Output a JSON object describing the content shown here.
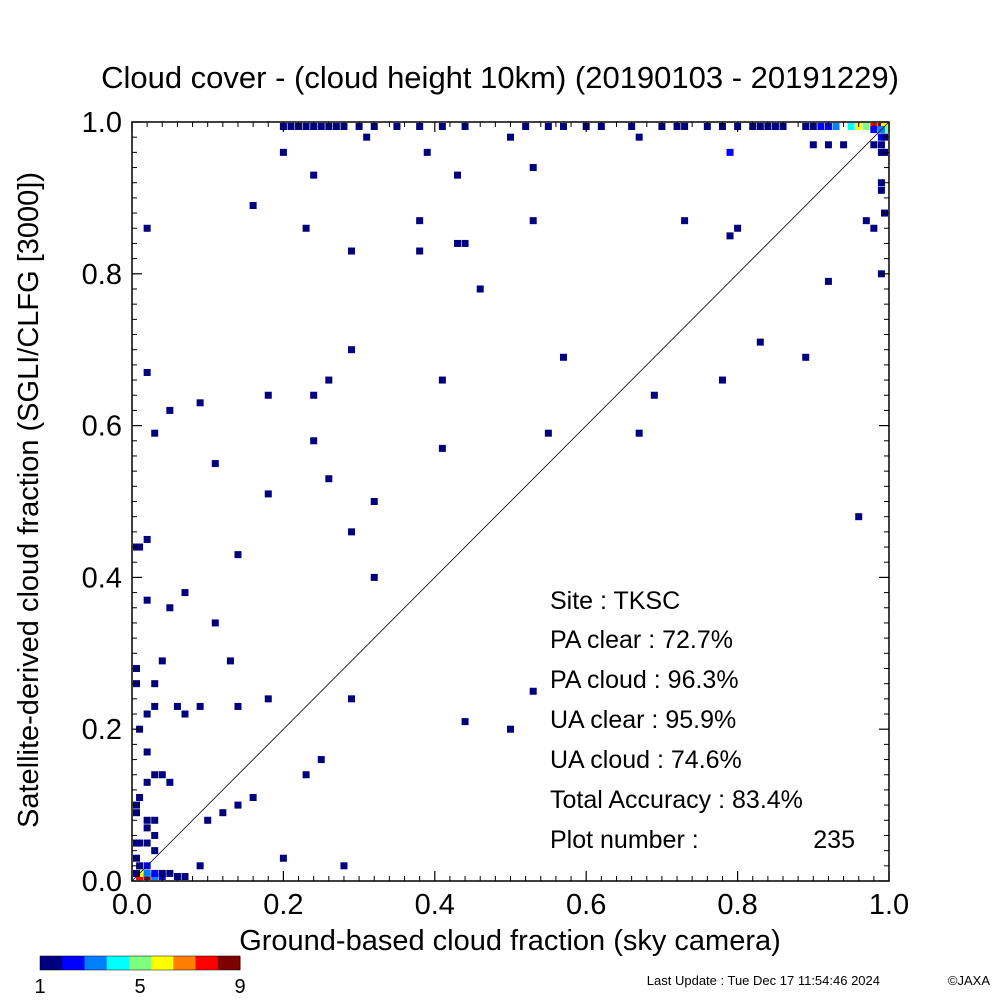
{
  "chart_data": {
    "type": "heatmap",
    "title": "Cloud cover - (cloud height 10km)  (20190103 - 20191229)",
    "xlabel": "Ground-based cloud fraction (sky camera)",
    "ylabel": "Satellite-derived cloud fraction (SGLI/CLFG [3000])",
    "xlim": [
      0,
      1
    ],
    "ylim": [
      0,
      1
    ],
    "x_ticks": [
      "0.0",
      "0.2",
      "0.4",
      "0.6",
      "0.8",
      "1.0"
    ],
    "y_ticks": [
      "0.0",
      "0.2",
      "0.4",
      "0.6",
      "0.8",
      "1.0"
    ],
    "grid": false,
    "reference_line": "y = x",
    "colorbar": {
      "min": 1,
      "max": 9,
      "labels": [
        "1",
        "5",
        "9"
      ],
      "colors": [
        "#00007f",
        "#0000ff",
        "#007fff",
        "#00ffff",
        "#7fff7f",
        "#ffff00",
        "#ff7f00",
        "#ff0000",
        "#7f0000"
      ]
    },
    "points": [
      [
        0.02,
        0.0,
        9
      ],
      [
        0.01,
        0.0,
        8
      ],
      [
        0.03,
        0.0,
        3
      ],
      [
        0.01,
        0.01,
        6
      ],
      [
        0.02,
        0.01,
        3
      ],
      [
        0.03,
        0.01,
        2
      ],
      [
        0.02,
        0.02,
        2
      ],
      [
        0.04,
        0.0,
        2
      ],
      [
        0.06,
        0.0,
        1
      ],
      [
        0.07,
        0.0,
        1
      ],
      [
        0.05,
        0.01,
        1
      ],
      [
        0.04,
        0.01,
        1
      ],
      [
        0.0,
        0.01,
        1
      ],
      [
        0.0,
        0.03,
        1
      ],
      [
        0.01,
        0.02,
        1
      ],
      [
        0.0,
        0.05,
        1
      ],
      [
        0.01,
        0.05,
        1
      ],
      [
        0.02,
        0.05,
        1
      ],
      [
        0.03,
        0.04,
        1
      ],
      [
        0.03,
        0.06,
        1
      ],
      [
        0.02,
        0.07,
        1
      ],
      [
        0.03,
        0.08,
        1
      ],
      [
        0.02,
        0.08,
        1
      ],
      [
        0.0,
        0.09,
        1
      ],
      [
        0.0,
        0.1,
        1
      ],
      [
        0.01,
        0.11,
        1
      ],
      [
        0.02,
        0.13,
        1
      ],
      [
        0.03,
        0.14,
        1
      ],
      [
        0.04,
        0.14,
        1
      ],
      [
        0.05,
        0.13,
        1
      ],
      [
        0.02,
        0.17,
        1
      ],
      [
        0.01,
        0.2,
        1
      ],
      [
        0.02,
        0.22,
        1
      ],
      [
        0.03,
        0.23,
        1
      ],
      [
        0.0,
        0.26,
        1
      ],
      [
        0.0,
        0.28,
        1
      ],
      [
        0.03,
        0.26,
        1
      ],
      [
        0.04,
        0.29,
        1
      ],
      [
        0.06,
        0.23,
        1
      ],
      [
        0.07,
        0.22,
        1
      ],
      [
        0.09,
        0.23,
        1
      ],
      [
        0.14,
        0.23,
        1
      ],
      [
        0.18,
        0.24,
        1
      ],
      [
        0.29,
        0.24,
        1
      ],
      [
        0.1,
        0.08,
        1
      ],
      [
        0.12,
        0.09,
        1
      ],
      [
        0.14,
        0.1,
        1
      ],
      [
        0.16,
        0.11,
        1
      ],
      [
        0.09,
        0.02,
        1
      ],
      [
        0.2,
        0.03,
        1
      ],
      [
        0.28,
        0.02,
        1
      ],
      [
        0.23,
        0.14,
        1
      ],
      [
        0.25,
        0.16,
        1
      ],
      [
        0.02,
        0.37,
        1
      ],
      [
        0.05,
        0.36,
        1
      ],
      [
        0.07,
        0.38,
        1
      ],
      [
        0.11,
        0.34,
        1
      ],
      [
        0.13,
        0.29,
        1
      ],
      [
        0.0,
        0.44,
        1
      ],
      [
        0.01,
        0.44,
        1
      ],
      [
        0.02,
        0.45,
        1
      ],
      [
        0.14,
        0.43,
        1
      ],
      [
        0.32,
        0.4,
        1
      ],
      [
        0.29,
        0.46,
        1
      ],
      [
        0.32,
        0.5,
        1
      ],
      [
        0.18,
        0.51,
        1
      ],
      [
        0.26,
        0.53,
        1
      ],
      [
        0.11,
        0.55,
        1
      ],
      [
        0.24,
        0.58,
        1
      ],
      [
        0.03,
        0.59,
        1
      ],
      [
        0.05,
        0.62,
        1
      ],
      [
        0.09,
        0.63,
        1
      ],
      [
        0.18,
        0.64,
        1
      ],
      [
        0.24,
        0.64,
        1
      ],
      [
        0.26,
        0.66,
        1
      ],
      [
        0.02,
        0.67,
        1
      ],
      [
        0.29,
        0.7,
        1
      ],
      [
        0.41,
        0.66,
        1
      ],
      [
        0.41,
        0.57,
        1
      ],
      [
        0.44,
        0.21,
        1
      ],
      [
        0.5,
        0.2,
        1
      ],
      [
        0.53,
        0.25,
        1
      ],
      [
        0.55,
        0.59,
        1
      ],
      [
        0.57,
        0.69,
        1
      ],
      [
        0.67,
        0.59,
        1
      ],
      [
        0.69,
        0.64,
        1
      ],
      [
        0.78,
        0.66,
        1
      ],
      [
        0.83,
        0.71,
        1
      ],
      [
        0.89,
        0.69,
        1
      ],
      [
        0.92,
        0.79,
        1
      ],
      [
        0.96,
        0.48,
        1
      ],
      [
        0.29,
        0.83,
        1
      ],
      [
        0.38,
        0.83,
        1
      ],
      [
        0.38,
        0.87,
        1
      ],
      [
        0.43,
        0.84,
        1
      ],
      [
        0.44,
        0.84,
        1
      ],
      [
        0.46,
        0.78,
        1
      ],
      [
        0.23,
        0.86,
        1
      ],
      [
        0.16,
        0.89,
        1
      ],
      [
        0.02,
        0.86,
        1
      ],
      [
        0.24,
        0.93,
        1
      ],
      [
        0.2,
        0.96,
        1
      ],
      [
        0.31,
        0.98,
        1
      ],
      [
        0.39,
        0.96,
        1
      ],
      [
        0.43,
        0.93,
        1
      ],
      [
        0.5,
        0.98,
        1
      ],
      [
        0.53,
        0.94,
        1
      ],
      [
        0.53,
        0.87,
        1
      ],
      [
        0.67,
        0.98,
        1
      ],
      [
        0.73,
        0.87,
        1
      ],
      [
        0.79,
        0.85,
        1
      ],
      [
        0.8,
        0.86,
        1
      ],
      [
        0.79,
        0.96,
        2
      ],
      [
        0.9,
        0.97,
        1
      ],
      [
        0.92,
        0.97,
        1
      ],
      [
        0.94,
        0.97,
        1
      ],
      [
        0.97,
        0.87,
        1
      ],
      [
        0.98,
        0.86,
        1
      ],
      [
        0.99,
        0.8,
        1
      ],
      [
        1.0,
        0.88,
        1
      ],
      [
        0.99,
        0.91,
        1
      ],
      [
        0.99,
        0.92,
        1
      ],
      [
        0.2,
        1.0,
        1
      ],
      [
        0.21,
        1.0,
        1
      ],
      [
        0.22,
        1.0,
        1
      ],
      [
        0.23,
        1.0,
        1
      ],
      [
        0.24,
        1.0,
        1
      ],
      [
        0.25,
        1.0,
        1
      ],
      [
        0.26,
        1.0,
        1
      ],
      [
        0.27,
        1.0,
        1
      ],
      [
        0.28,
        1.0,
        1
      ],
      [
        0.3,
        1.0,
        1
      ],
      [
        0.32,
        1.0,
        1
      ],
      [
        0.35,
        1.0,
        1
      ],
      [
        0.38,
        1.0,
        1
      ],
      [
        0.41,
        1.0,
        1
      ],
      [
        0.44,
        1.0,
        1
      ],
      [
        0.52,
        1.0,
        1
      ],
      [
        0.55,
        1.0,
        1
      ],
      [
        0.57,
        1.0,
        1
      ],
      [
        0.6,
        1.0,
        1
      ],
      [
        0.62,
        1.0,
        1
      ],
      [
        0.66,
        1.0,
        1
      ],
      [
        0.7,
        1.0,
        1
      ],
      [
        0.72,
        1.0,
        1
      ],
      [
        0.73,
        1.0,
        1
      ],
      [
        0.76,
        1.0,
        1
      ],
      [
        0.78,
        1.0,
        1
      ],
      [
        0.8,
        1.0,
        1
      ],
      [
        0.82,
        1.0,
        1
      ],
      [
        0.83,
        1.0,
        1
      ],
      [
        0.84,
        1.0,
        1
      ],
      [
        0.85,
        1.0,
        1
      ],
      [
        0.86,
        1.0,
        1
      ],
      [
        0.89,
        1.0,
        1
      ],
      [
        0.9,
        1.0,
        1
      ],
      [
        0.91,
        1.0,
        2
      ],
      [
        0.92,
        1.0,
        2
      ],
      [
        0.93,
        1.0,
        3
      ],
      [
        0.95,
        1.0,
        4
      ],
      [
        0.96,
        1.0,
        6
      ],
      [
        0.97,
        1.0,
        5
      ],
      [
        0.98,
        1.0,
        8
      ],
      [
        0.99,
        1.0,
        9
      ],
      [
        1.0,
        1.0,
        6
      ],
      [
        1.0,
        0.99,
        5
      ],
      [
        0.99,
        0.99,
        3
      ],
      [
        0.98,
        0.99,
        2
      ],
      [
        0.99,
        0.98,
        2
      ],
      [
        1.0,
        0.98,
        1
      ],
      [
        0.98,
        0.97,
        1
      ],
      [
        0.99,
        0.97,
        1
      ],
      [
        0.99,
        0.96,
        1
      ],
      [
        1.0,
        0.96,
        1
      ]
    ]
  },
  "stats": {
    "site": "Site : TKSC",
    "pa_clear": "PA clear :  72.7%",
    "pa_cloud": "PA cloud :  96.3%",
    "ua_clear": "UA clear :  95.9%",
    "ua_cloud": "UA cloud :  74.6%",
    "total_accuracy": "Total Accuracy :  83.4%",
    "plot_number_label": "Plot number :",
    "plot_number_value": "235"
  },
  "footer": {
    "last_update": "Last Update : Tue Dec 17 11:54:46 2024",
    "copyright": "©JAXA"
  }
}
